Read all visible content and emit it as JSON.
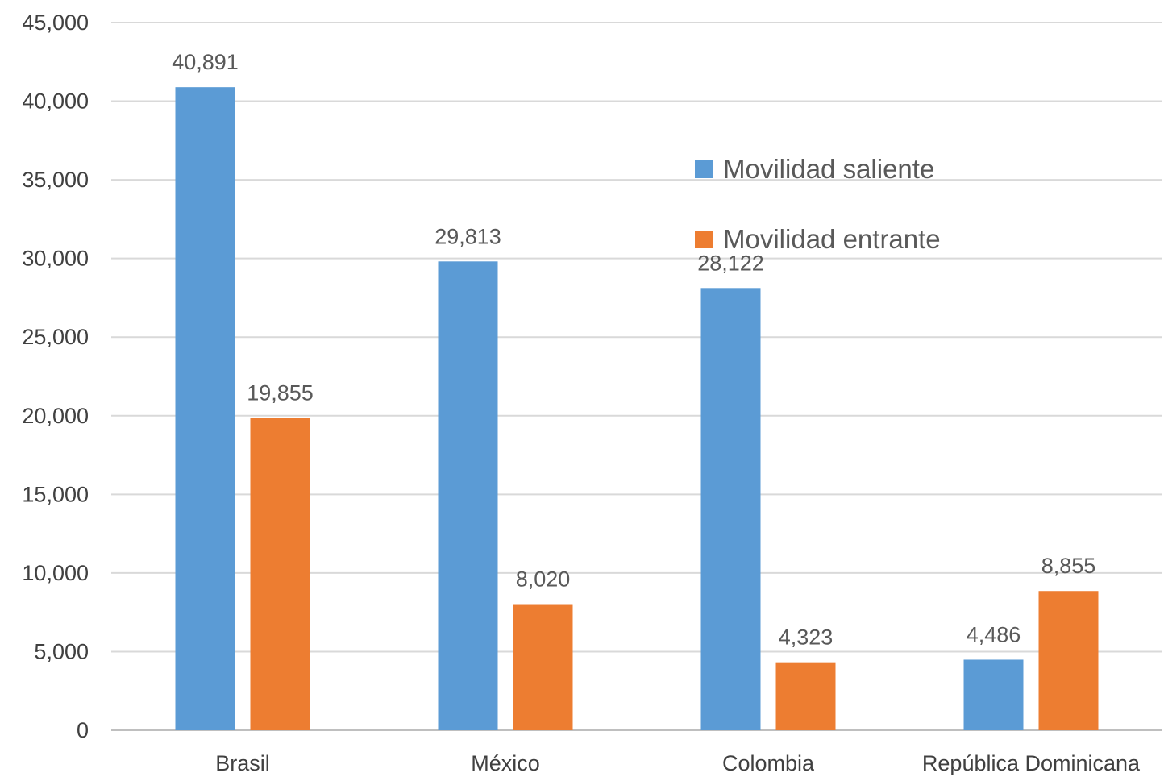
{
  "chart_data": {
    "type": "bar",
    "title": "",
    "xlabel": "",
    "ylabel": "",
    "categories": [
      "Brasil",
      "México",
      "Colombia",
      "República Dominicana"
    ],
    "series": [
      {
        "name": "Movilidad saliente",
        "color": "#5b9bd5",
        "values": [
          40891,
          29813,
          28122,
          4486
        ],
        "labels": [
          "40,891",
          "29,813",
          "28,122",
          "4,486"
        ]
      },
      {
        "name": "Movilidad entrante",
        "color": "#ed7d31",
        "values": [
          19855,
          8020,
          4323,
          8855
        ],
        "labels": [
          "19,855",
          "8,020",
          "4,323",
          "8,855"
        ]
      }
    ],
    "ylim": [
      0,
      45000
    ],
    "yticks": [
      0,
      5000,
      10000,
      15000,
      20000,
      25000,
      30000,
      35000,
      40000,
      45000
    ],
    "ytick_labels": [
      "0",
      "5,000",
      "10,000",
      "15,000",
      "20,000",
      "25,000",
      "30,000",
      "35,000",
      "40,000",
      "45,000"
    ],
    "grid": true,
    "legend_position": "upper-right-inside"
  }
}
